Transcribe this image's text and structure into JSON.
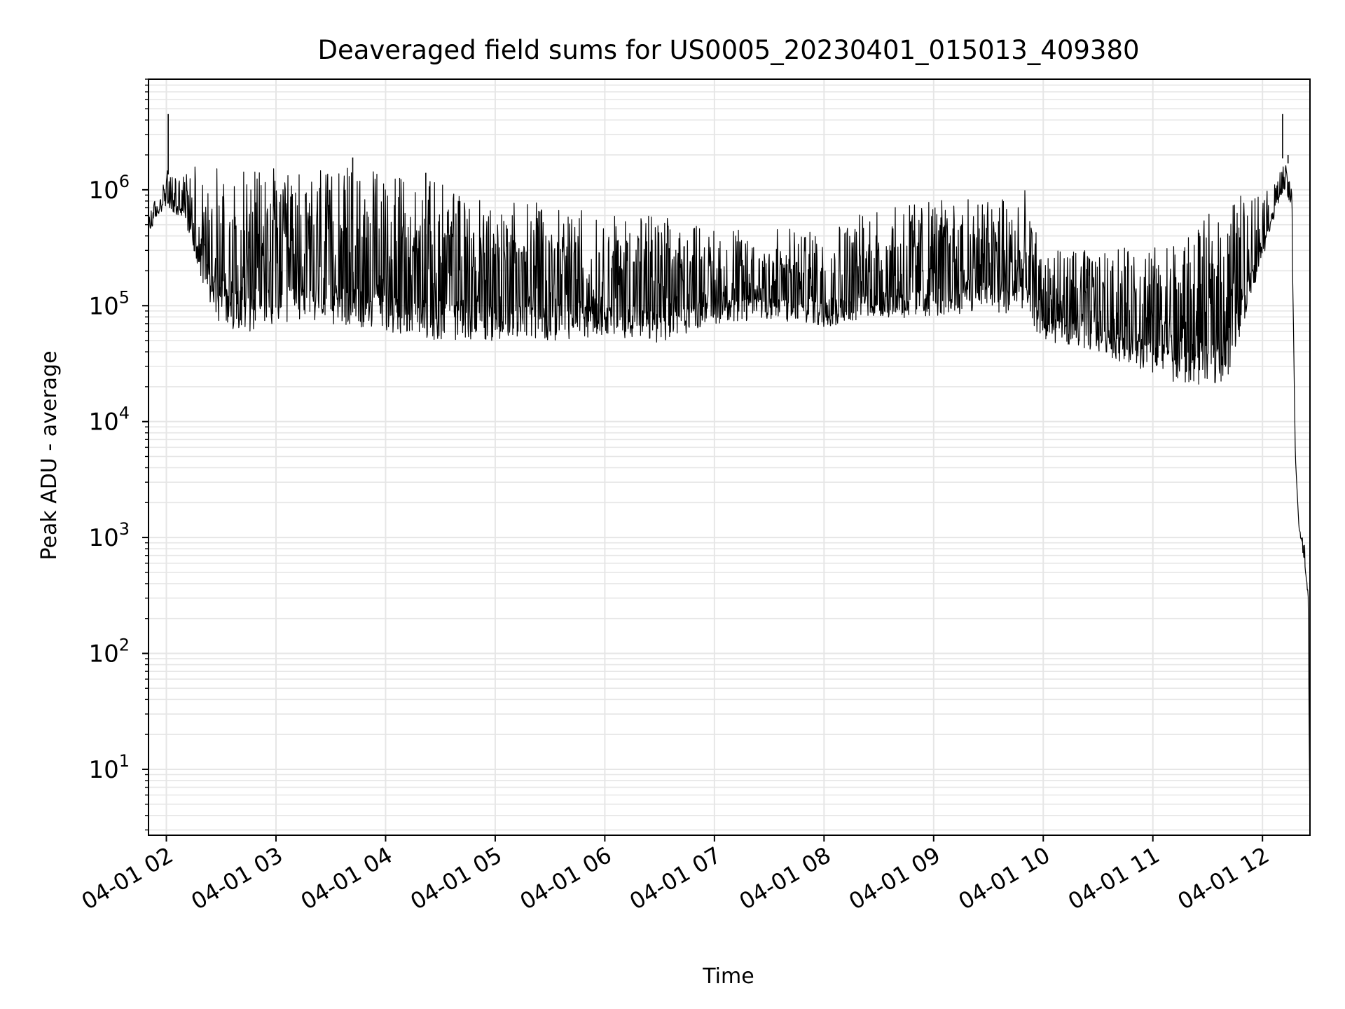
{
  "chart_data": {
    "type": "line",
    "title": "Deaveraged field sums for US0005_20230401_015013_409380",
    "xlabel": "Time",
    "ylabel": "Peak ADU - average",
    "yscale": "log",
    "grid": true,
    "legend": "none",
    "line_color": "#000000",
    "grid_color": "#e6e6e6",
    "xlim": [
      "2023-04-01T01:50:13",
      "2023-04-01T12:26:00"
    ],
    "ylim": [
      2.7,
      9000000
    ],
    "x_ticks": [
      "04-01 02",
      "04-01 03",
      "04-01 04",
      "04-01 05",
      "04-01 06",
      "04-01 07",
      "04-01 08",
      "04-01 09",
      "04-01 10",
      "04-01 11",
      "04-01 12"
    ],
    "y_ticks": [
      {
        "base": "10",
        "exp": "1"
      },
      {
        "base": "10",
        "exp": "2"
      },
      {
        "base": "10",
        "exp": "3"
      },
      {
        "base": "10",
        "exp": "4"
      },
      {
        "base": "10",
        "exp": "5"
      },
      {
        "base": "10",
        "exp": "6"
      }
    ],
    "series": [
      {
        "x": [
          "2023-04-01T01:50:13",
          "2023-04-01T01:55:00",
          "2023-04-01T02:00:00",
          "2023-04-01T02:05:00",
          "2023-04-01T02:10:00",
          "2023-04-01T02:15:00",
          "2023-04-01T02:20:00",
          "2023-04-01T02:30:00",
          "2023-04-01T02:45:00",
          "2023-04-01T03:00:00",
          "2023-04-01T03:30:00",
          "2023-04-01T04:00:00",
          "2023-04-01T04:30:00",
          "2023-04-01T05:00:00",
          "2023-04-01T05:30:00",
          "2023-04-01T06:00:00",
          "2023-04-01T06:30:00",
          "2023-04-01T07:00:00",
          "2023-04-01T07:30:00",
          "2023-04-01T08:00:00",
          "2023-04-01T08:30:00",
          "2023-04-01T09:00:00",
          "2023-04-01T09:30:00",
          "2023-04-01T09:50:00",
          "2023-04-01T10:00:00",
          "2023-04-01T10:30:00",
          "2023-04-01T11:00:00",
          "2023-04-01T11:20:00",
          "2023-04-01T11:40:00",
          "2023-04-01T12:00:00",
          "2023-04-01T12:10:00",
          "2023-04-01T12:13:00",
          "2023-04-01T12:16:00",
          "2023-04-01T12:18:00",
          "2023-04-01T12:20:00",
          "2023-04-01T12:23:00",
          "2023-04-01T12:25:00",
          "2023-04-01T12:26:00"
        ],
        "low": [
          400000,
          600000,
          700000,
          600000,
          550000,
          300000,
          150000,
          65000,
          60000,
          65000,
          70000,
          60000,
          50000,
          50000,
          50000,
          55000,
          48000,
          70000,
          75000,
          65000,
          75000,
          80000,
          90000,
          80000,
          50000,
          40000,
          25000,
          20000,
          22000,
          250000,
          900000,
          1000000,
          600000,
          5000,
          1200,
          600,
          300,
          3
        ],
        "high": [
          800000,
          800000,
          1500000,
          1300000,
          1400000,
          1600000,
          1700000,
          1500000,
          1600000,
          1600000,
          1600000,
          1400000,
          1200000,
          900000,
          800000,
          600000,
          600000,
          450000,
          450000,
          500000,
          700000,
          800000,
          900000,
          1000000,
          300000,
          300000,
          350000,
          400000,
          900000,
          1000000,
          1500000,
          1700000,
          1300000,
          5000,
          1200,
          900,
          400,
          3
        ],
        "spikes": [
          {
            "x": "2023-04-01T02:01:00",
            "y": 4500000
          },
          {
            "x": "2023-04-01T03:42:00",
            "y": 1900000
          },
          {
            "x": "2023-04-01T04:22:00",
            "y": 1400000
          },
          {
            "x": "2023-04-01T12:11:00",
            "y": 4500000
          },
          {
            "x": "2023-04-01T12:14:00",
            "y": 2000000
          }
        ]
      }
    ]
  }
}
